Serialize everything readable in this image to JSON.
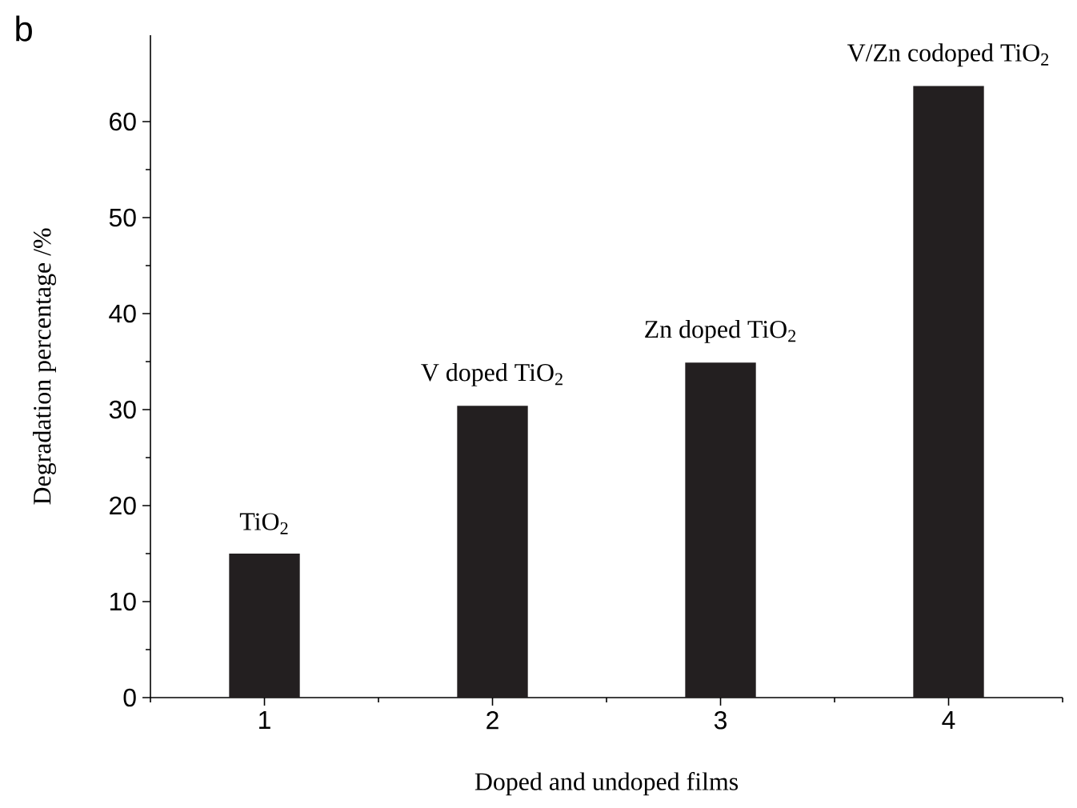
{
  "chart_data": {
    "type": "bar",
    "xlabel": "Doped and undoped films",
    "ylabel": "Degradation percentage /%",
    "categories": [
      "1",
      "2",
      "3",
      "4"
    ],
    "values": [
      15,
      30.4,
      34.9,
      63.7
    ],
    "color": "#231f20",
    "ylim": [
      0,
      69
    ],
    "yticks": [
      0,
      10,
      20,
      30,
      40,
      50,
      60
    ],
    "grid": false,
    "annotations": [
      "b",
      {
        "text": "TiO$_{2}$",
        "x": "1",
        "y": 15
      },
      {
        "text": "V doped TiO$_{2}$",
        "x": "2",
        "y": 30.4
      },
      {
        "text": "Zn doped TiO$_{2}$",
        "x": "3",
        "y": 34.9
      },
      {
        "text": "V/Zn codoped TiO$_{2}$",
        "x": "4",
        "y": 63.7
      }
    ]
  }
}
